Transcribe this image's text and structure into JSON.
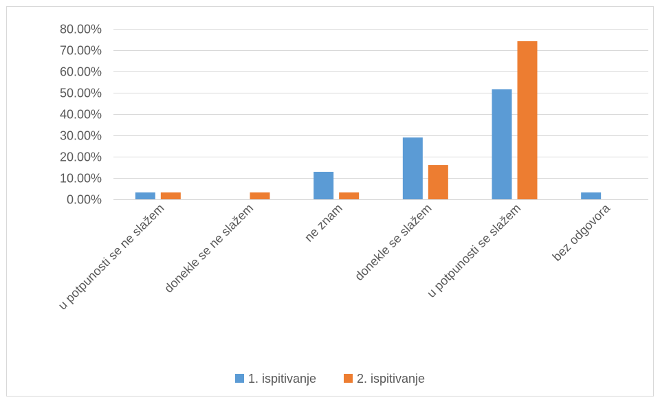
{
  "chart_data": {
    "type": "bar",
    "categories": [
      "u potpunosti se ne slažem",
      "donekle se ne slažem",
      "ne znam",
      "donekle se slažem",
      "u potpunosti se slažem",
      "bez odgovora"
    ],
    "series": [
      {
        "name": "1. ispitivanje",
        "color": "#5b9bd5",
        "values": [
          3.2,
          0,
          12.9,
          29.0,
          51.6,
          3.2
        ]
      },
      {
        "name": "2. ispitivanje",
        "color": "#ed7d31",
        "values": [
          3.2,
          3.2,
          3.2,
          16.1,
          74.2,
          0
        ]
      }
    ],
    "ylim": [
      0,
      80
    ],
    "yticks": [
      0,
      10,
      20,
      30,
      40,
      50,
      60,
      70,
      80
    ],
    "ytick_labels": [
      "0.00%",
      "10.00%",
      "20.00%",
      "30.00%",
      "40.00%",
      "50.00%",
      "60.00%",
      "70.00%",
      "80.00%"
    ],
    "grid": true,
    "legend_position": "bottom"
  }
}
